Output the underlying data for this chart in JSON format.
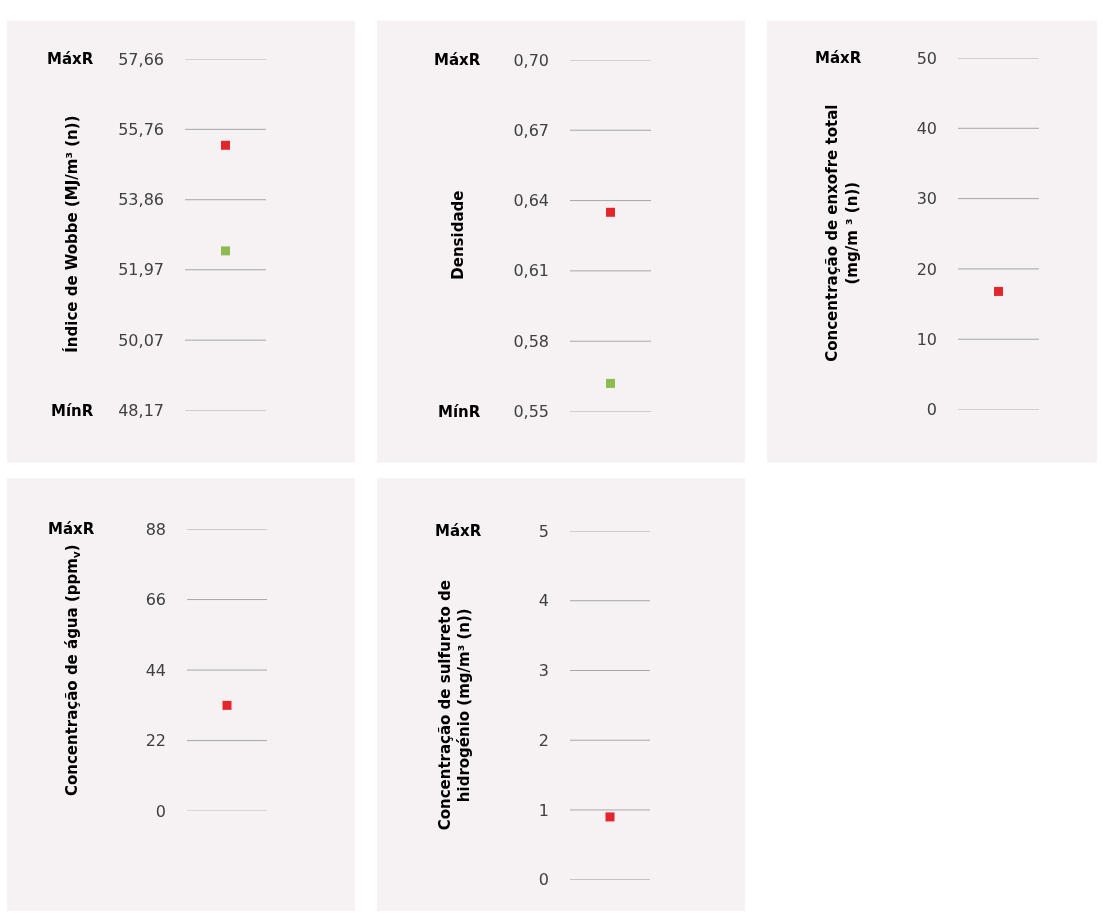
{
  "chart_data": [
    {
      "type": "scatter",
      "ylabel": "Índice de Wobbe (MJ/m³ (n))",
      "categories": [
        null
      ],
      "marker": "square",
      "series": [
        {
          "color": "#e3262b",
          "values": [
            55.33
          ]
        },
        {
          "color": "#8cbc4f",
          "values": [
            52.48
          ]
        }
      ],
      "ylim": [
        48.17,
        57.66
      ],
      "yticks": [
        {
          "value": 48.17,
          "label": "48,17"
        },
        {
          "value": 50.07,
          "label": "50,07"
        },
        {
          "value": 51.97,
          "label": "51,97"
        },
        {
          "value": 53.86,
          "label": "53,86"
        },
        {
          "value": 55.76,
          "label": "55,76"
        },
        {
          "value": 57.66,
          "label": "57,66"
        }
      ],
      "grid": "y",
      "annotations": [
        "MáxR",
        "MínR"
      ]
    },
    {
      "type": "scatter",
      "ylabel": "Densidade",
      "categories": [
        null
      ],
      "marker": "square",
      "series": [
        {
          "color": "#e3262b",
          "values": [
            0.635
          ]
        },
        {
          "color": "#8cbc4f",
          "values": [
            0.562
          ]
        }
      ],
      "ylim": [
        0.55,
        0.7
      ],
      "yticks": [
        {
          "value": 0.55,
          "label": "0,55"
        },
        {
          "value": 0.58,
          "label": "0,58"
        },
        {
          "value": 0.61,
          "label": "0,61"
        },
        {
          "value": 0.64,
          "label": "0,64"
        },
        {
          "value": 0.67,
          "label": "0,67"
        },
        {
          "value": 0.7,
          "label": "0,70"
        }
      ],
      "grid": "y",
      "annotations": [
        "MáxR",
        "MínR"
      ]
    },
    {
      "type": "scatter",
      "ylabel": "Concentração de enxofre total\n(mg/m ³ (n))",
      "categories": [
        null
      ],
      "marker": "square",
      "series": [
        {
          "color": "#e3262b",
          "values": [
            16.8
          ]
        }
      ],
      "ylim": [
        0,
        50
      ],
      "yticks": [
        0,
        10,
        20,
        30,
        40,
        50
      ],
      "grid": "y",
      "annotations": [
        "MáxR"
      ]
    },
    {
      "type": "scatter",
      "ylabel": "Concentração de água (ppm$_{v}$)",
      "categories": [
        null
      ],
      "marker": "square",
      "series": [
        {
          "color": "#e3262b",
          "values": [
            33
          ]
        }
      ],
      "ylim": [
        0,
        88
      ],
      "yticks": [
        0,
        22,
        44,
        66,
        88
      ],
      "grid": "y",
      "annotations": [
        "MáxR"
      ]
    },
    {
      "type": "scatter",
      "ylabel": "Concentração de sulfureto de\nhidrogénio (mg/m³ (n))",
      "categories": [
        null
      ],
      "marker": "square",
      "series": [
        {
          "color": "#e3262b",
          "values": [
            0.9
          ]
        }
      ],
      "ylim": [
        0,
        5
      ],
      "yticks": [
        0,
        1,
        2,
        3,
        4,
        5
      ],
      "grid": "y",
      "annotations": [
        "MáxR"
      ]
    }
  ]
}
